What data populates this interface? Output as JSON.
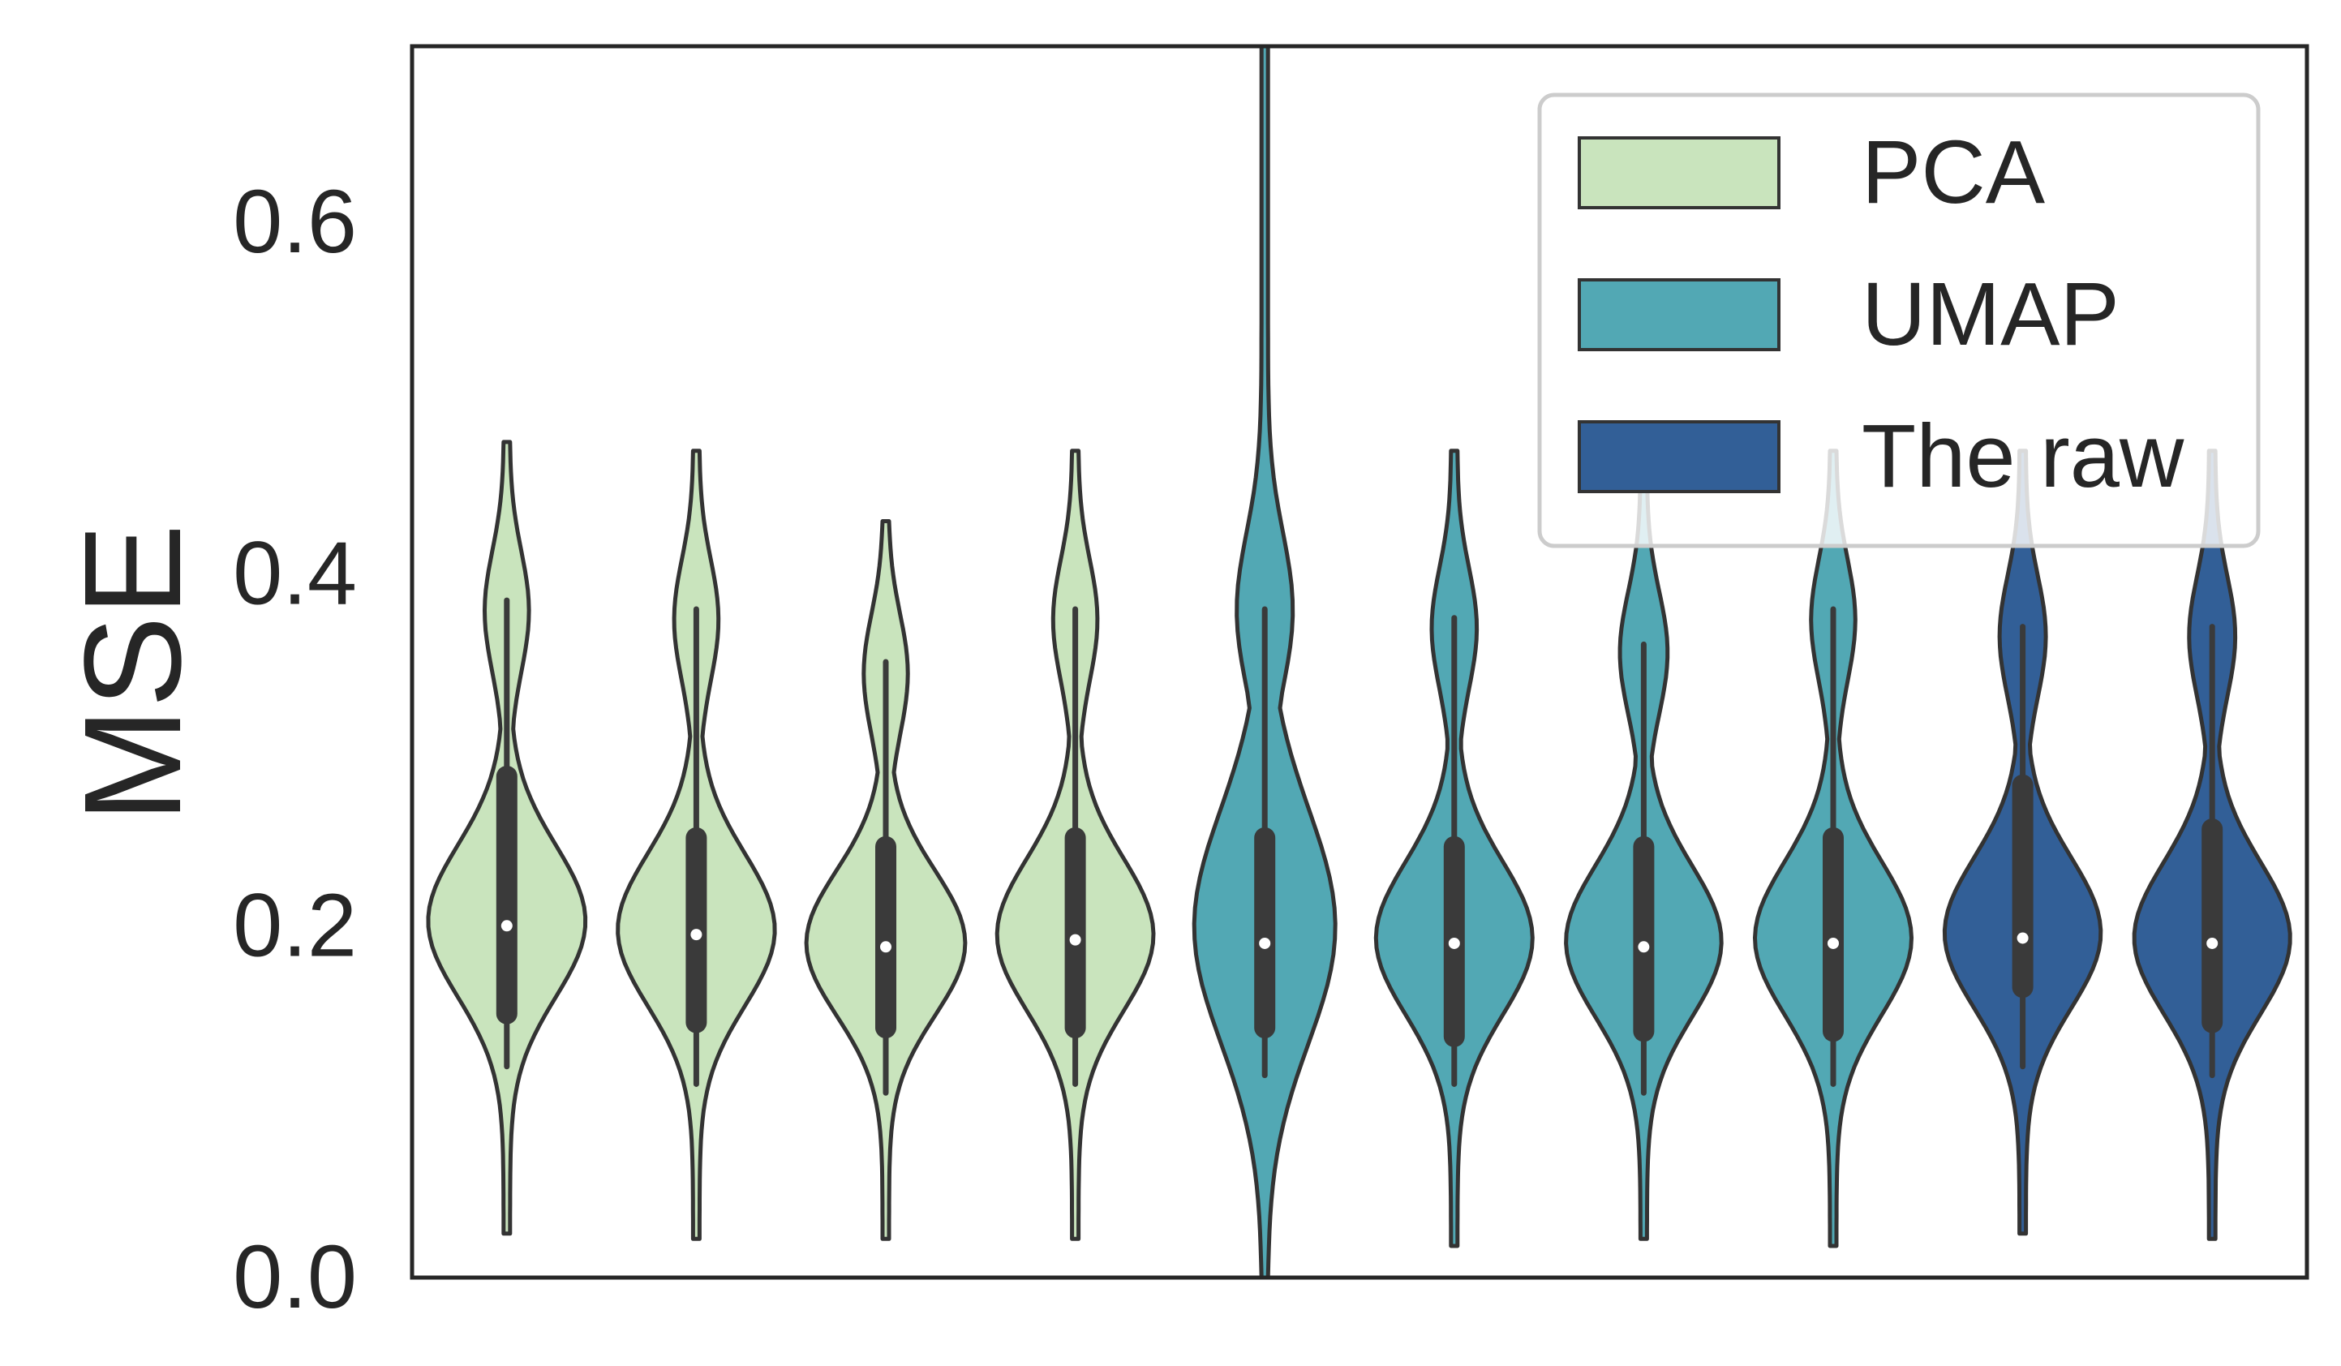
{
  "chart_data": {
    "type": "violin",
    "ylabel": "MSE",
    "ylim": [
      0,
      0.7
    ],
    "yticks": [
      "0.0",
      "0.2",
      "0.4",
      "0.6"
    ],
    "ytick_values": [
      0,
      0.2,
      0.4,
      0.6
    ],
    "grid": false,
    "legend_position": "top-right",
    "series": [
      {
        "name": "PCA",
        "color": "#c9e4bd"
      },
      {
        "name": "UMAP",
        "color": "#52a8b4"
      },
      {
        "name": "The raw",
        "color": "#325f97"
      }
    ],
    "violins": [
      {
        "series": "PCA",
        "min": 0.025,
        "max": 0.475,
        "q1": 0.15,
        "q3": 0.285,
        "median": 0.2,
        "whisker_low": 0.12,
        "whisker_high": 0.385
      },
      {
        "series": "PCA",
        "min": 0.022,
        "max": 0.47,
        "q1": 0.145,
        "q3": 0.25,
        "median": 0.195,
        "whisker_low": 0.11,
        "whisker_high": 0.38
      },
      {
        "series": "PCA",
        "min": 0.022,
        "max": 0.43,
        "q1": 0.142,
        "q3": 0.245,
        "median": 0.188,
        "whisker_low": 0.105,
        "whisker_high": 0.35
      },
      {
        "series": "PCA",
        "min": 0.022,
        "max": 0.47,
        "q1": 0.142,
        "q3": 0.25,
        "median": 0.192,
        "whisker_low": 0.11,
        "whisker_high": 0.38
      },
      {
        "series": "UMAP",
        "min": 0.0,
        "max": 0.7,
        "q1": 0.142,
        "q3": 0.25,
        "median": 0.19,
        "whisker_low": 0.115,
        "whisker_high": 0.38
      },
      {
        "series": "UMAP",
        "min": 0.018,
        "max": 0.47,
        "q1": 0.137,
        "q3": 0.245,
        "median": 0.19,
        "whisker_low": 0.11,
        "whisker_high": 0.375
      },
      {
        "series": "UMAP",
        "min": 0.022,
        "max": 0.47,
        "q1": 0.14,
        "q3": 0.245,
        "median": 0.188,
        "whisker_low": 0.105,
        "whisker_high": 0.36
      },
      {
        "series": "UMAP",
        "min": 0.018,
        "max": 0.47,
        "q1": 0.14,
        "q3": 0.25,
        "median": 0.19,
        "whisker_low": 0.11,
        "whisker_high": 0.38
      },
      {
        "series": "The raw",
        "min": 0.025,
        "max": 0.47,
        "q1": 0.165,
        "q3": 0.28,
        "median": 0.193,
        "whisker_low": 0.12,
        "whisker_high": 0.37
      },
      {
        "series": "The raw",
        "min": 0.022,
        "max": 0.47,
        "q1": 0.145,
        "q3": 0.255,
        "median": 0.19,
        "whisker_low": 0.115,
        "whisker_high": 0.37
      }
    ]
  }
}
